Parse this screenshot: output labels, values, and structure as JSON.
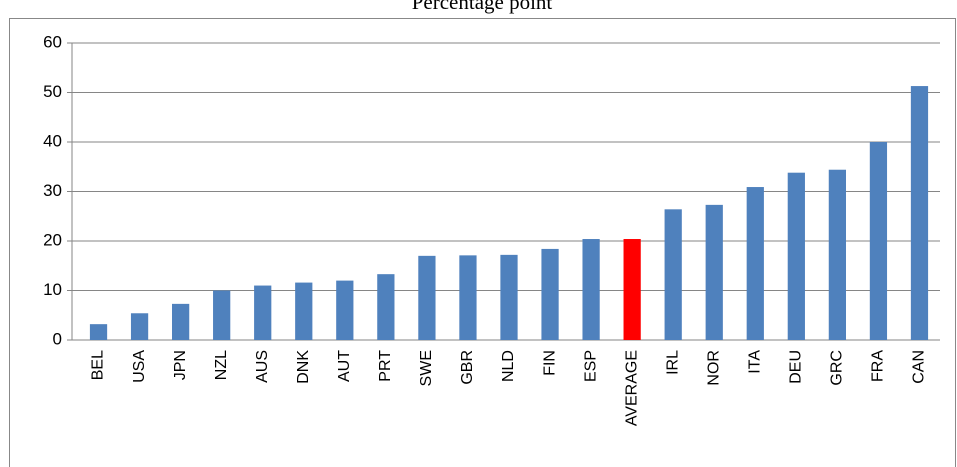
{
  "chart_data": {
    "type": "bar",
    "title": "Percentage point",
    "categories": [
      "BEL",
      "USA",
      "JPN",
      "NZL",
      "AUS",
      "DNK",
      "AUT",
      "PRT",
      "SWE",
      "GBR",
      "NLD",
      "FIN",
      "ESP",
      "AVERAGE",
      "IRL",
      "NOR",
      "ITA",
      "DEU",
      "GRC",
      "FRA",
      "CAN"
    ],
    "values": [
      3.2,
      5.4,
      7.3,
      10.0,
      11.0,
      11.6,
      12.0,
      13.3,
      17.0,
      17.1,
      17.2,
      18.4,
      20.4,
      20.4,
      26.4,
      27.3,
      30.9,
      33.8,
      34.4,
      40.0,
      51.3
    ],
    "colors": [
      "#4f81bd",
      "#4f81bd",
      "#4f81bd",
      "#4f81bd",
      "#4f81bd",
      "#4f81bd",
      "#4f81bd",
      "#4f81bd",
      "#4f81bd",
      "#4f81bd",
      "#4f81bd",
      "#4f81bd",
      "#4f81bd",
      "#ff0000",
      "#4f81bd",
      "#4f81bd",
      "#4f81bd",
      "#4f81bd",
      "#4f81bd",
      "#4f81bd",
      "#4f81bd"
    ],
    "ylim": [
      0,
      60
    ],
    "yticks": [
      0,
      10,
      20,
      30,
      40,
      50,
      60
    ],
    "grid": true
  }
}
